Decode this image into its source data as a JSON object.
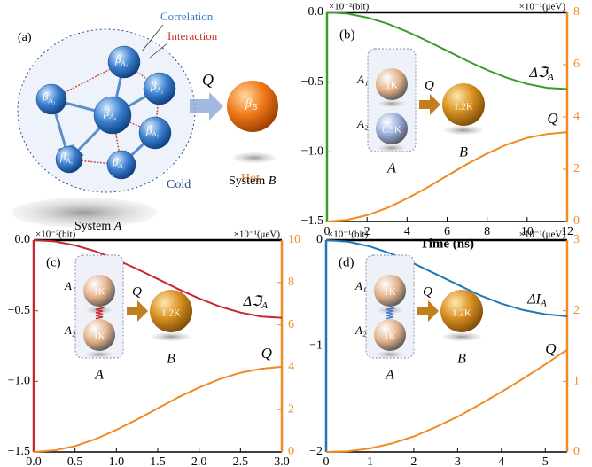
{
  "diagram": {
    "panel_label": "(a)",
    "correlation": "Correlation",
    "interaction": "Interaction",
    "flow": "Q",
    "hot": "Hot",
    "cold": "Cold",
    "system_a": {
      "text": "System",
      "symbol": "A"
    },
    "system_b": {
      "text": "System",
      "symbol": "B"
    },
    "nodes": [
      {
        "label": "β",
        "sub": "A₁"
      },
      {
        "label": "β",
        "sub": "A₂"
      },
      {
        "label": "β",
        "sub": "A₃"
      },
      {
        "label": "β",
        "sub": "A₄"
      },
      {
        "label": "β",
        "sub": "A₅"
      },
      {
        "label": "β",
        "sub": "A₆"
      },
      {
        "label": "β",
        "sub": "A₇"
      }
    ],
    "hot_node": {
      "label": "β",
      "sub": "B"
    }
  },
  "chart_data": [
    {
      "type": "line",
      "panel_label": "(b)",
      "x_label": "Time (ns)",
      "y_unit": "×10⁻²(bit)",
      "y2_unit": "×10⁻¹(μeV)",
      "x": [
        0,
        1,
        2,
        3,
        4,
        5,
        6,
        7,
        8,
        9,
        10,
        11,
        12
      ],
      "xlim": [
        0,
        12
      ],
      "xticks": [
        0,
        2,
        4,
        6,
        8,
        10,
        12
      ],
      "ylim": [
        -1.5,
        0
      ],
      "yticks": [
        {
          "value": 0,
          "label": "0.0"
        },
        {
          "value": -0.5,
          "label": "−0.5"
        },
        {
          "value": -1,
          "label": "−1.0"
        },
        {
          "value": -1.5,
          "label": "−1.5"
        }
      ],
      "y2lim": [
        0,
        8
      ],
      "y2ticks": [
        0,
        2,
        4,
        6,
        8
      ],
      "series": [
        {
          "name": "Δℑ",
          "name_sub": "A",
          "color": "#3a9a2a",
          "values": [
            0,
            -0.009,
            -0.037,
            -0.08,
            -0.138,
            -0.204,
            -0.275,
            -0.347,
            -0.413,
            -0.47,
            -0.513,
            -0.541,
            -0.55
          ]
        },
        {
          "name": "Q",
          "color": "#f08a24",
          "axis": "y2",
          "values": [
            0,
            0.06,
            0.24,
            0.52,
            0.88,
            1.3,
            1.75,
            2.2,
            2.6,
            2.95,
            3.2,
            3.35,
            3.42
          ]
        }
      ],
      "inset": {
        "a1": "A₁",
        "a2": "A₂",
        "s1": "1K",
        "s2": "0.5K",
        "sb": "1.2K",
        "a": "A",
        "b": "B",
        "q": "Q",
        "sphere_colors": [
          "#e2b088",
          "#93a9dc"
        ],
        "coupling": "none"
      }
    },
    {
      "type": "line",
      "panel_label": "(c)",
      "x_label": "Time (ns)",
      "y_unit": "×10⁻²(bit)",
      "y2_unit": "×10⁻¹(μeV)",
      "x": [
        0,
        0.25,
        0.5,
        0.75,
        1,
        1.25,
        1.5,
        1.75,
        2,
        2.25,
        2.5,
        2.75,
        3
      ],
      "xlim": [
        0,
        3
      ],
      "xticks": [
        {
          "value": 0,
          "label": "0.0"
        },
        0.5,
        {
          "value": 1,
          "label": "1.0"
        },
        1.5,
        {
          "value": 2,
          "label": "2.0"
        },
        2.5,
        {
          "value": 3,
          "label": "3.0"
        }
      ],
      "ylim": [
        -1.5,
        0
      ],
      "yticks": [
        {
          "value": 0,
          "label": "0.0"
        },
        {
          "value": -0.5,
          "label": "−0.5"
        },
        {
          "value": -1,
          "label": "−1.0"
        },
        {
          "value": -1.5,
          "label": "−1.5"
        }
      ],
      "y2lim": [
        0,
        10
      ],
      "y2ticks": [
        0,
        2,
        4,
        6,
        8,
        10
      ],
      "series": [
        {
          "name": "Δℑ",
          "name_sub": "A",
          "color": "#c8282d",
          "values": [
            0,
            -0.009,
            -0.037,
            -0.08,
            -0.138,
            -0.204,
            -0.275,
            -0.347,
            -0.413,
            -0.47,
            -0.513,
            -0.541,
            -0.55
          ]
        },
        {
          "name": "Q",
          "color": "#f08a24",
          "axis": "y2",
          "values": [
            0,
            0.07,
            0.28,
            0.61,
            1.04,
            1.53,
            2.06,
            2.58,
            3.04,
            3.44,
            3.74,
            3.93,
            4.02
          ]
        }
      ],
      "inset": {
        "a1": "A₁",
        "a2": "A₂",
        "s1": "1K",
        "s2": "1K",
        "sb": "1.2K",
        "a": "A",
        "b": "B",
        "q": "Q",
        "sphere_colors": [
          "#e2b088",
          "#e2b088"
        ],
        "coupling": "interaction"
      }
    },
    {
      "type": "line",
      "panel_label": "(d)",
      "x_label": "Time (ns)",
      "y_unit": "×10⁻¹(bit)",
      "y2_unit": "×10⁻¹(μeV)",
      "x": [
        0,
        0.5,
        1,
        1.5,
        2,
        2.5,
        3,
        3.5,
        4,
        4.5,
        5,
        5.5
      ],
      "xlim": [
        0,
        5.5
      ],
      "xticks": [
        0,
        1,
        2,
        3,
        4,
        5
      ],
      "ylim": [
        -2,
        0
      ],
      "yticks": [
        0,
        {
          "value": -1,
          "label": "−1"
        },
        {
          "value": -2,
          "label": "−2"
        }
      ],
      "y2lim": [
        0,
        3
      ],
      "y2ticks": [
        0,
        1,
        2,
        3
      ],
      "series": [
        {
          "name": "ΔI",
          "name_sub": "A",
          "color": "#1f77b4",
          "values": [
            0,
            -0.015,
            -0.06,
            -0.13,
            -0.22,
            -0.32,
            -0.42,
            -0.52,
            -0.6,
            -0.66,
            -0.7,
            -0.72
          ]
        },
        {
          "name": "Q",
          "color": "#f08a24",
          "axis": "y2",
          "values": [
            0,
            0.01,
            0.05,
            0.12,
            0.22,
            0.35,
            0.5,
            0.67,
            0.85,
            1.04,
            1.24,
            1.45
          ]
        }
      ],
      "inset": {
        "a1": "A₁",
        "a2": "A₂",
        "s1": "1K",
        "s2": "1K",
        "sb": "1.2K",
        "a": "A",
        "b": "B",
        "q": "Q",
        "sphere_colors": [
          "#e2b088",
          "#e2b088"
        ],
        "coupling": "correlation"
      }
    }
  ]
}
